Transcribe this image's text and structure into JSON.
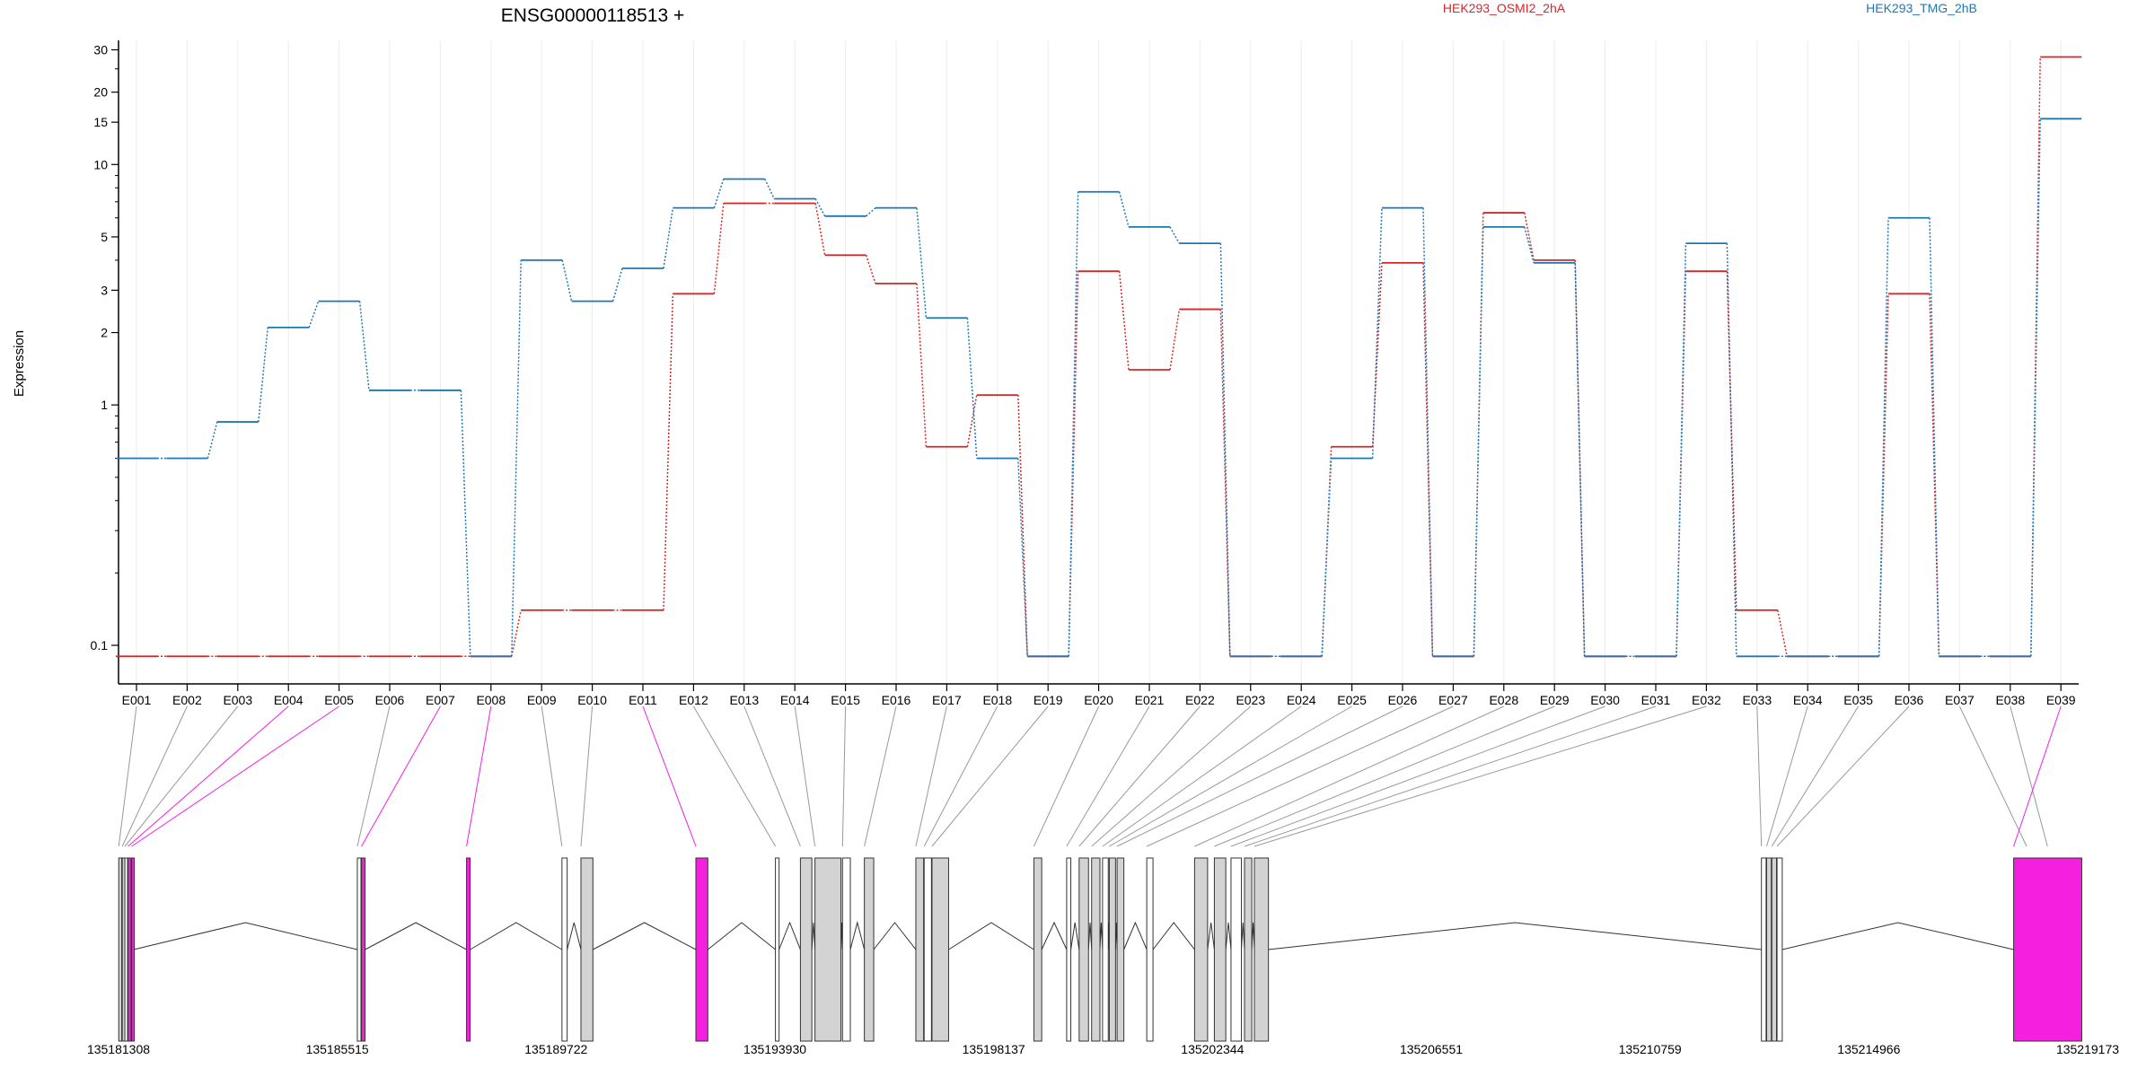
{
  "chart_data": {
    "type": "line",
    "title": "ENSG00000118513 +",
    "ylabel": "Expression",
    "yscale": "log",
    "ylim": [
      0.08,
      32
    ],
    "yticks": [
      0.1,
      1,
      2,
      3,
      5,
      10,
      15,
      20,
      30
    ],
    "categories": [
      "E001",
      "E002",
      "E003",
      "E004",
      "E005",
      "E006",
      "E007",
      "E008",
      "E009",
      "E010",
      "E011",
      "E012",
      "E013",
      "E014",
      "E015",
      "E016",
      "E017",
      "E018",
      "E019",
      "E020",
      "E021",
      "E022",
      "E023",
      "E024",
      "E025",
      "E026",
      "E027",
      "E028",
      "E029",
      "E030",
      "E031",
      "E032",
      "E033",
      "E034",
      "E035",
      "E036",
      "E037",
      "E038",
      "E039"
    ],
    "series": [
      {
        "name": "HEK293_OSMI2_2hA",
        "color": "#d62728",
        "values": [
          0.09,
          0.09,
          0.09,
          0.09,
          0.09,
          0.09,
          0.09,
          0.09,
          0.14,
          0.14,
          0.14,
          2.9,
          6.9,
          6.9,
          4.2,
          3.2,
          0.67,
          1.1,
          0.09,
          3.6,
          1.4,
          2.5,
          0.09,
          0.09,
          0.67,
          3.9,
          0.09,
          6.3,
          4.0,
          0.09,
          0.09,
          3.6,
          0.14,
          0.09,
          0.09,
          2.9,
          0.09,
          0.09,
          28
        ]
      },
      {
        "name": "HEK293_TMG_2hB",
        "color": "#1f77b4",
        "values": [
          0.6,
          0.6,
          0.85,
          2.1,
          2.7,
          1.15,
          1.15,
          0.09,
          4.0,
          2.7,
          3.7,
          6.6,
          8.7,
          7.2,
          6.1,
          6.6,
          2.3,
          0.6,
          0.09,
          7.7,
          5.5,
          4.7,
          0.09,
          0.09,
          0.6,
          6.6,
          0.09,
          5.5,
          3.9,
          0.09,
          0.09,
          4.7,
          0.09,
          0.09,
          0.09,
          6.0,
          0.09,
          0.09,
          15.5
        ]
      }
    ],
    "genome": {
      "xlim": [
        135181308,
        135219173
      ],
      "ticks": [
        135181308,
        135185515,
        135189722,
        135193930,
        135198137,
        135202344,
        135206551,
        135210759,
        135214966,
        135219173
      ],
      "exon_starts": [
        135181312,
        135181380,
        135181430,
        135181490,
        135181560,
        135185900,
        135185980,
        135188000,
        135189835,
        135190200,
        135192410,
        135193940,
        135194420,
        135194700,
        135195230,
        135195650,
        135196640,
        135196800,
        135196950,
        135198910,
        135199540,
        135199780,
        135200020,
        135200230,
        135200360,
        135200510,
        135201080,
        135202000,
        135202380,
        135202700,
        135202960,
        135203150,
        135212900,
        135213000,
        135213100,
        135213200,
        135218000,
        135218400,
        135217750
      ],
      "exon_ends": [
        135181370,
        135181420,
        135181480,
        135181550,
        135181600,
        135185970,
        135186050,
        135188070,
        135189935,
        135190430,
        135192640,
        135194010,
        135194640,
        135195200,
        135195380,
        135195830,
        135196790,
        135196940,
        135197270,
        135199060,
        135199620,
        135199960,
        135200180,
        135200340,
        135200480,
        135200640,
        135201200,
        135202250,
        135202600,
        135202900,
        135203100,
        135203420,
        135212990,
        135213090,
        135213190,
        135213300,
        135218300,
        135218800,
        135219060
      ],
      "highlighted": [
        3,
        4,
        6,
        7,
        10,
        38
      ]
    }
  },
  "colors": {
    "highlight": "#f51fe0",
    "exon_fill": "#d3d3d3",
    "connector": "#999999"
  }
}
